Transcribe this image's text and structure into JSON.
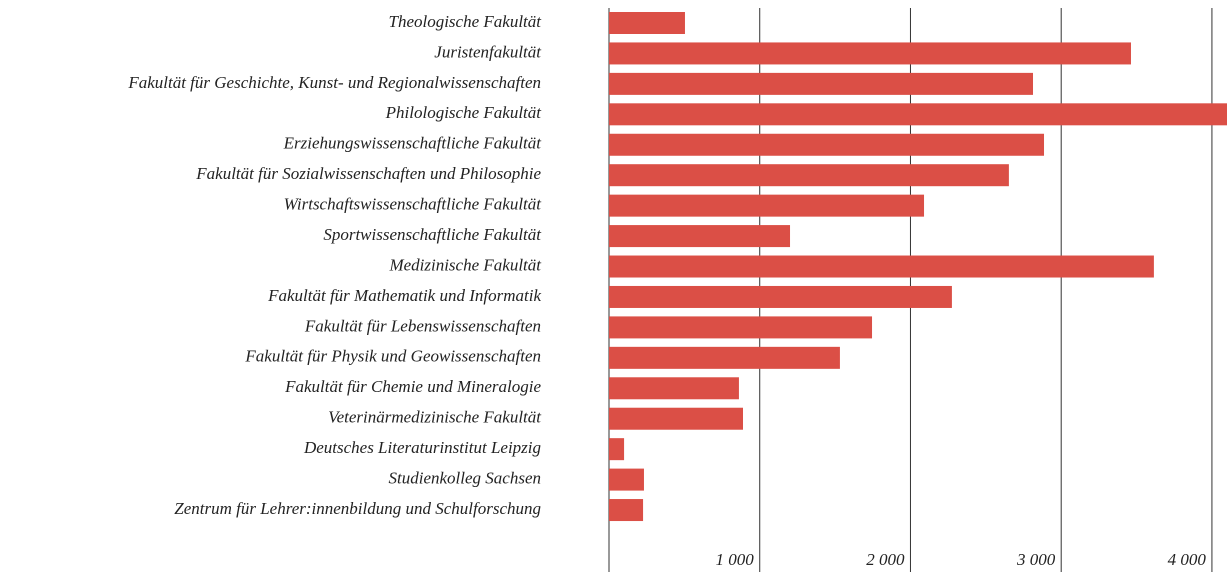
{
  "chart_data": {
    "type": "bar",
    "orientation": "horizontal",
    "categories": [
      "Theologische Fakultät",
      "Juristenfakultät",
      "Fakultät für Geschichte, Kunst- und Regionalwissenschaften",
      "Philologische Fakultät",
      "Erziehungswissenschaftliche Fakultät",
      "Fakultät für Sozialwissenschaften und Philosophie",
      "Wirtschaftswissenschaftliche Fakultät",
      "Sportwissenschaftliche Fakultät",
      "Medizinische Fakultät",
      "Fakultät für Mathematik und Informatik",
      "Fakultät für Lebenswissenschaften",
      "Fakultät für Physik und Geowissenschaften",
      "Fakultät für Chemie und Mineralogie",
      "Veterinärmedizinische Fakultät",
      "Deutsches Literaturinstitut Leipzig",
      "Studienkolleg Sachsen",
      "Zentrum für Lehrer:innenbildung und Schulforschung"
    ],
    "values": [
      504,
      3463,
      2813,
      4100,
      2886,
      2653,
      2090,
      1201,
      3615,
      2275,
      1745,
      1532,
      862,
      889,
      100,
      232,
      226
    ],
    "color": "#db4f46",
    "xlim": [
      0,
      4100
    ],
    "xticks": [
      {
        "value": 1000,
        "label": "1 000"
      },
      {
        "value": 2000,
        "label": "2 000"
      },
      {
        "value": 3000,
        "label": "3 000"
      },
      {
        "value": 4000,
        "label": "4 000"
      }
    ],
    "grid": true
  }
}
